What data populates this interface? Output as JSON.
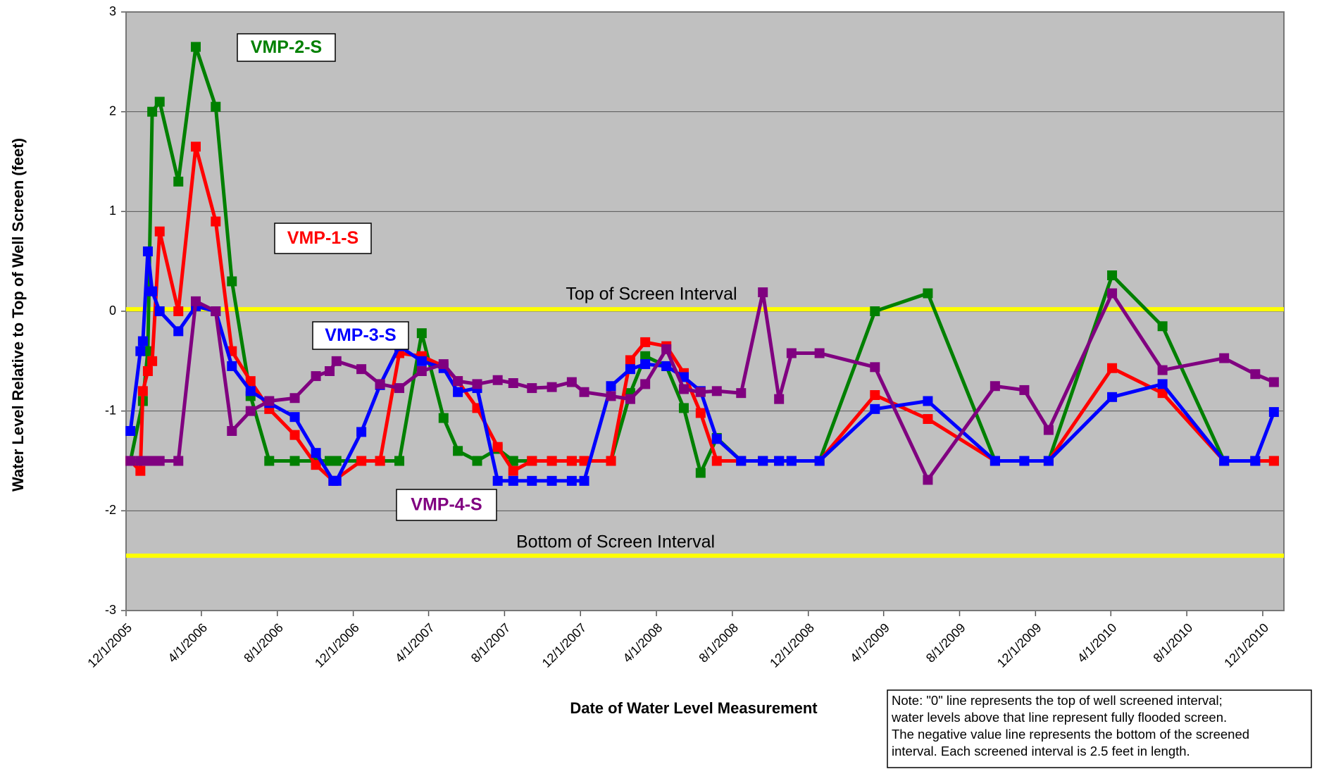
{
  "chart_data": {
    "type": "line",
    "y_label": "Water Level Relative to Top of Well Screen (feet)",
    "x_label": "Date of Water Level Measurement",
    "note": [
      "Note: \"0\" line represents the top of well screened interval;",
      "water levels above that line represent fully flooded screen.",
      "The negative value line represents the bottom of the screened",
      "interval.  Each screened interval is 2.5 feet in length."
    ],
    "ylim": [
      -3,
      3
    ],
    "yticks": [
      -3,
      -2,
      -1,
      0,
      1,
      2,
      3
    ],
    "xlim": [
      "2005-12-01",
      "2011-01-04"
    ],
    "xticks": [
      {
        "value": "2005-12-01",
        "label": "12/1/2005"
      },
      {
        "value": "2006-04-01",
        "label": "4/1/2006"
      },
      {
        "value": "2006-08-01",
        "label": "8/1/2006"
      },
      {
        "value": "2006-12-01",
        "label": "12/1/2006"
      },
      {
        "value": "2007-04-01",
        "label": "4/1/2007"
      },
      {
        "value": "2007-08-01",
        "label": "8/1/2007"
      },
      {
        "value": "2007-12-01",
        "label": "12/1/2007"
      },
      {
        "value": "2008-04-01",
        "label": "4/1/2008"
      },
      {
        "value": "2008-08-01",
        "label": "8/1/2008"
      },
      {
        "value": "2008-12-01",
        "label": "12/1/2008"
      },
      {
        "value": "2009-04-01",
        "label": "4/1/2009"
      },
      {
        "value": "2009-08-01",
        "label": "8/1/2009"
      },
      {
        "value": "2009-12-01",
        "label": "12/1/2009"
      },
      {
        "value": "2010-04-01",
        "label": "4/1/2010"
      },
      {
        "value": "2010-08-01",
        "label": "8/1/2010"
      },
      {
        "value": "2010-12-01",
        "label": "12/1/2010"
      }
    ],
    "grid": true,
    "background": "#c0c0c0",
    "reference_lines": [
      {
        "value": 0.02,
        "label": "Top of Screen Interval",
        "color": "#ffff00"
      },
      {
        "value": -2.45,
        "label": "Bottom of Screen Interval",
        "color": "#ffff00"
      }
    ],
    "series": [
      {
        "name": "VMP-2-S",
        "color": "#008000",
        "x": [
          "2005-12-08",
          "2005-12-28",
          "2006-01-05",
          "2006-01-12",
          "2006-01-24",
          "2006-02-23",
          "2006-03-23",
          "2006-04-24",
          "2006-05-20",
          "2006-06-19",
          "2006-07-19",
          "2006-08-29",
          "2006-10-02",
          "2006-10-24",
          "2006-11-04",
          "2006-12-14",
          "2007-01-13",
          "2007-02-13",
          "2007-03-21",
          "2007-04-25",
          "2007-05-18",
          "2007-06-18",
          "2007-07-21",
          "2007-08-15",
          "2007-09-14",
          "2007-10-16",
          "2007-11-17",
          "2007-12-07",
          "2008-01-19",
          "2008-02-19",
          "2008-03-14",
          "2008-04-17",
          "2008-05-15",
          "2008-06-11",
          "2008-07-07",
          "2008-08-15",
          "2008-09-19",
          "2008-10-15",
          "2008-11-04",
          "2008-12-19",
          "2009-03-18",
          "2009-06-11",
          "2009-09-27",
          "2009-11-13",
          "2009-12-22",
          "2010-04-03",
          "2010-06-23",
          "2010-09-30",
          "2010-11-19",
          "2010-12-19"
        ],
        "values": [
          -1.5,
          -0.9,
          -0.4,
          2.0,
          2.1,
          1.3,
          2.65,
          2.05,
          0.3,
          -0.85,
          -1.5,
          -1.5,
          -1.5,
          -1.5,
          -1.5,
          -1.5,
          -1.5,
          -1.5,
          -0.22,
          -1.07,
          -1.4,
          -1.5,
          -1.38,
          -1.5,
          -1.5,
          -1.5,
          -1.5,
          -1.5,
          -1.5,
          -0.82,
          -0.45,
          -0.55,
          -0.97,
          -1.62,
          -1.27,
          -1.5,
          -1.5,
          -1.5,
          -1.5,
          -1.5,
          0.0,
          0.18,
          -1.5,
          -1.5,
          -1.5,
          0.36,
          -0.15,
          -1.5,
          -1.5,
          -1.5
        ]
      },
      {
        "name": "VMP-1-S",
        "color": "#ff0000",
        "x": [
          "2005-12-08",
          "2005-12-24",
          "2005-12-28",
          "2006-01-05",
          "2006-01-12",
          "2006-01-24",
          "2006-02-23",
          "2006-03-23",
          "2006-04-24",
          "2006-05-20",
          "2006-06-19",
          "2006-07-19",
          "2006-08-29",
          "2006-10-02",
          "2006-10-30",
          "2006-12-14",
          "2007-01-13",
          "2007-02-13",
          "2007-03-21",
          "2007-04-25",
          "2007-05-18",
          "2007-06-18",
          "2007-07-21",
          "2007-08-15",
          "2007-09-14",
          "2007-10-16",
          "2007-11-17",
          "2007-12-07",
          "2008-01-19",
          "2008-02-19",
          "2008-03-14",
          "2008-04-17",
          "2008-05-15",
          "2008-06-11",
          "2008-07-07",
          "2008-08-15",
          "2008-09-19",
          "2008-10-15",
          "2008-11-04",
          "2008-12-19",
          "2009-03-18",
          "2009-06-11",
          "2009-09-27",
          "2009-11-13",
          "2009-12-22",
          "2010-04-03",
          "2010-06-23",
          "2010-09-30",
          "2010-11-19",
          "2010-12-19"
        ],
        "values": [
          -1.5,
          -1.6,
          -0.8,
          -0.6,
          -0.5,
          0.8,
          0.0,
          1.65,
          0.9,
          -0.4,
          -0.7,
          -0.98,
          -1.24,
          -1.54,
          -1.7,
          -1.5,
          -1.5,
          -0.42,
          -0.45,
          -0.55,
          -0.7,
          -0.97,
          -1.36,
          -1.6,
          -1.5,
          -1.5,
          -1.5,
          -1.5,
          -1.5,
          -0.49,
          -0.31,
          -0.35,
          -0.62,
          -1.02,
          -1.5,
          -1.5,
          -1.5,
          -1.5,
          -1.5,
          -1.5,
          -0.84,
          -1.08,
          -1.5,
          -1.5,
          -1.5,
          -0.57,
          -0.82,
          -1.5,
          -1.5,
          -1.5
        ]
      },
      {
        "name": "VMP-3-S",
        "color": "#0000ff",
        "x": [
          "2005-12-08",
          "2005-12-24",
          "2005-12-28",
          "2006-01-05",
          "2006-01-12",
          "2006-01-24",
          "2006-02-23",
          "2006-03-23",
          "2006-04-24",
          "2006-05-20",
          "2006-06-19",
          "2006-07-19",
          "2006-08-29",
          "2006-10-02",
          "2006-10-30",
          "2006-11-04",
          "2006-12-14",
          "2007-01-13",
          "2007-02-13",
          "2007-03-21",
          "2007-04-25",
          "2007-05-18",
          "2007-06-18",
          "2007-07-21",
          "2007-08-15",
          "2007-09-14",
          "2007-10-16",
          "2007-11-17",
          "2007-12-07",
          "2008-01-19",
          "2008-02-19",
          "2008-03-14",
          "2008-04-17",
          "2008-05-15",
          "2008-06-11",
          "2008-07-07",
          "2008-08-15",
          "2008-09-19",
          "2008-10-15",
          "2008-11-04",
          "2008-12-19",
          "2009-03-18",
          "2009-06-11",
          "2009-09-27",
          "2009-11-13",
          "2009-12-22",
          "2010-04-03",
          "2010-06-23",
          "2010-09-30",
          "2010-11-19",
          "2010-12-19"
        ],
        "values": [
          -1.2,
          -0.4,
          -0.3,
          0.6,
          0.2,
          0.0,
          -0.2,
          0.05,
          0.0,
          -0.55,
          -0.8,
          -0.92,
          -1.06,
          -1.42,
          -1.7,
          -1.7,
          -1.21,
          -0.74,
          -0.35,
          -0.5,
          -0.57,
          -0.81,
          -0.77,
          -1.7,
          -1.7,
          -1.7,
          -1.7,
          -1.7,
          -1.7,
          -0.75,
          -0.58,
          -0.53,
          -0.55,
          -0.66,
          -0.8,
          -1.28,
          -1.5,
          -1.5,
          -1.5,
          -1.5,
          -1.5,
          -0.98,
          -0.9,
          -1.5,
          -1.5,
          -1.5,
          -0.86,
          -0.73,
          -1.5,
          -1.5,
          -1.01
        ]
      },
      {
        "name": "VMP-4-S",
        "color": "#800080",
        "x": [
          "2005-12-08",
          "2005-12-24",
          "2006-01-05",
          "2006-01-12",
          "2006-01-24",
          "2006-02-23",
          "2006-03-23",
          "2006-04-24",
          "2006-05-20",
          "2006-06-19",
          "2006-07-19",
          "2006-08-29",
          "2006-10-02",
          "2006-10-24",
          "2006-11-04",
          "2006-12-14",
          "2007-01-13",
          "2007-02-13",
          "2007-03-21",
          "2007-04-25",
          "2007-05-18",
          "2007-06-18",
          "2007-07-21",
          "2007-08-15",
          "2007-09-14",
          "2007-10-16",
          "2007-11-17",
          "2007-12-07",
          "2008-01-19",
          "2008-02-19",
          "2008-03-14",
          "2008-04-17",
          "2008-05-15",
          "2008-06-11",
          "2008-07-07",
          "2008-08-15",
          "2008-09-19",
          "2008-10-15",
          "2008-11-04",
          "2008-12-19",
          "2009-03-18",
          "2009-06-11",
          "2009-09-27",
          "2009-11-13",
          "2009-12-22",
          "2010-04-03",
          "2010-06-23",
          "2010-09-30",
          "2010-11-19",
          "2010-12-19"
        ],
        "values": [
          -1.5,
          -1.5,
          -1.5,
          -1.5,
          -1.5,
          -1.5,
          0.1,
          0.0,
          -1.2,
          -1.0,
          -0.9,
          -0.87,
          -0.65,
          -0.6,
          -0.5,
          -0.58,
          -0.73,
          -0.77,
          -0.6,
          -0.53,
          -0.7,
          -0.73,
          -0.69,
          -0.72,
          -0.77,
          -0.76,
          -0.71,
          -0.81,
          -0.85,
          -0.88,
          -0.73,
          -0.38,
          -0.78,
          -0.81,
          -0.8,
          -0.82,
          0.19,
          -0.88,
          -0.42,
          -0.42,
          -0.56,
          -1.69,
          -0.75,
          -0.79,
          -1.19,
          0.18,
          -0.59,
          -0.47,
          -0.63,
          -0.71
        ]
      }
    ]
  }
}
